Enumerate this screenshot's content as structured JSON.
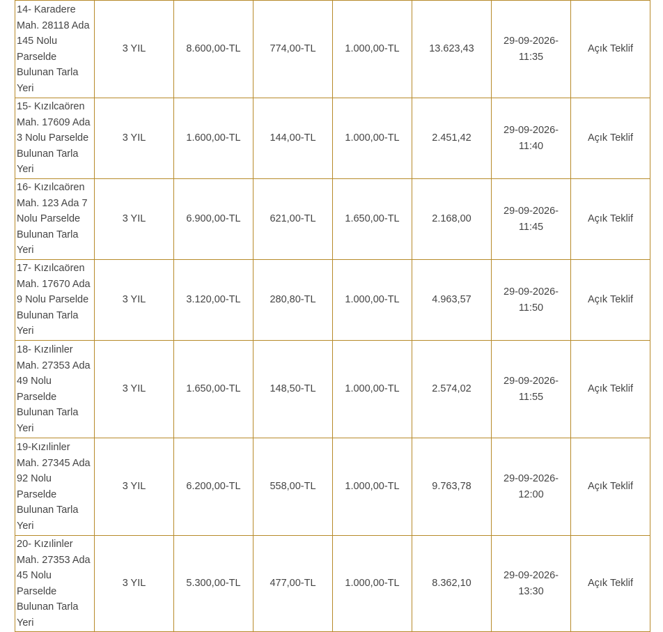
{
  "rows": [
    {
      "description": "14- Karadere Mah. 28118 Ada 145 Nolu Parselde Bulunan Tarla Yeri",
      "desc_lines": [
        "14- Karadere",
        "Mah. 28118 Ada",
        "145 Nolu",
        "Parselde",
        "Bulunan Tarla",
        "Yeri"
      ],
      "period": "3 YIL",
      "estimated_value": "8.600,00-TL",
      "guarantee": "774,00-TL",
      "fee": "1.000,00-TL",
      "area": "13.623,43",
      "date": "29-09-2026-",
      "time": "11:35",
      "method": "Açık Teklif"
    },
    {
      "description": "15- Kızılcaören Mah. 17609 Ada 3 Nolu Parselde Bulunan Tarla Yeri",
      "desc_lines": [
        "15- Kızılcaören",
        "Mah. 17609 Ada",
        "3 Nolu Parselde",
        "Bulunan Tarla",
        "Yeri"
      ],
      "period": "3 YIL",
      "estimated_value": "1.600,00-TL",
      "guarantee": "144,00-TL",
      "fee": "1.000,00-TL",
      "area": "2.451,42",
      "date": "29-09-2026-",
      "time": "11:40",
      "method": "Açık Teklif"
    },
    {
      "description": "16- Kızılcaören Mah. 123 Ada 7 Nolu Parselde Bulunan Tarla Yeri",
      "desc_lines": [
        "16- Kızılcaören",
        "Mah. 123 Ada 7",
        "Nolu Parselde",
        "Bulunan Tarla",
        "Yeri"
      ],
      "period": "3 YIL",
      "estimated_value": "6.900,00-TL",
      "guarantee": "621,00-TL",
      "fee": "1.650,00-TL",
      "area": "2.168,00",
      "date": "29-09-2026-",
      "time": "11:45",
      "method": "Açık Teklif"
    },
    {
      "description": "17- Kızılcaören Mah. 17670 Ada 9 Nolu Parselde Bulunan Tarla Yeri",
      "desc_lines": [
        "17- Kızılcaören",
        "Mah. 17670 Ada",
        "9 Nolu Parselde",
        "Bulunan Tarla",
        "Yeri"
      ],
      "period": "3 YIL",
      "estimated_value": "3.120,00-TL",
      "guarantee": "280,80-TL",
      "fee": "1.000,00-TL",
      "area": "4.963,57",
      "date": "29-09-2026-",
      "time": "11:50",
      "method": "Açık Teklif"
    },
    {
      "description": "18- Kızılinler Mah. 27353 Ada 49 Nolu Parselde Bulunan Tarla Yeri",
      "desc_lines": [
        "18- Kızılinler",
        "Mah. 27353 Ada",
        "49 Nolu",
        "Parselde",
        "Bulunan Tarla",
        "Yeri"
      ],
      "period": "3 YIL",
      "estimated_value": "1.650,00-TL",
      "guarantee": "148,50-TL",
      "fee": "1.000,00-TL",
      "area": "2.574,02",
      "date": "29-09-2026-",
      "time": "11:55",
      "method": "Açık Teklif"
    },
    {
      "description": "19-Kızılinler Mah. 27345 Ada 92 Nolu Parselde Bulunan Tarla Yeri",
      "desc_lines": [
        "19-Kızılinler",
        "Mah. 27345 Ada",
        "92 Nolu",
        "Parselde",
        "Bulunan Tarla",
        "Yeri"
      ],
      "period": "3 YIL",
      "estimated_value": "6.200,00-TL",
      "guarantee": "558,00-TL",
      "fee": "1.000,00-TL",
      "area": "9.763,78",
      "date": "29-09-2026-",
      "time": "12:00",
      "method": "Açık Teklif"
    },
    {
      "description": "20- Kızılinler Mah. 27353 Ada 45 Nolu Parselde Bulunan Tarla Yeri",
      "desc_lines": [
        "20- Kızılinler",
        "Mah. 27353 Ada",
        "45 Nolu",
        "Parselde",
        "Bulunan Tarla",
        "Yeri"
      ],
      "period": "3 YIL",
      "estimated_value": "5.300,00-TL",
      "guarantee": "477,00-TL",
      "fee": "1.000,00-TL",
      "area": "8.362,10",
      "date": "29-09-2026-",
      "time": "13:30",
      "method": "Açık Teklif"
    }
  ]
}
